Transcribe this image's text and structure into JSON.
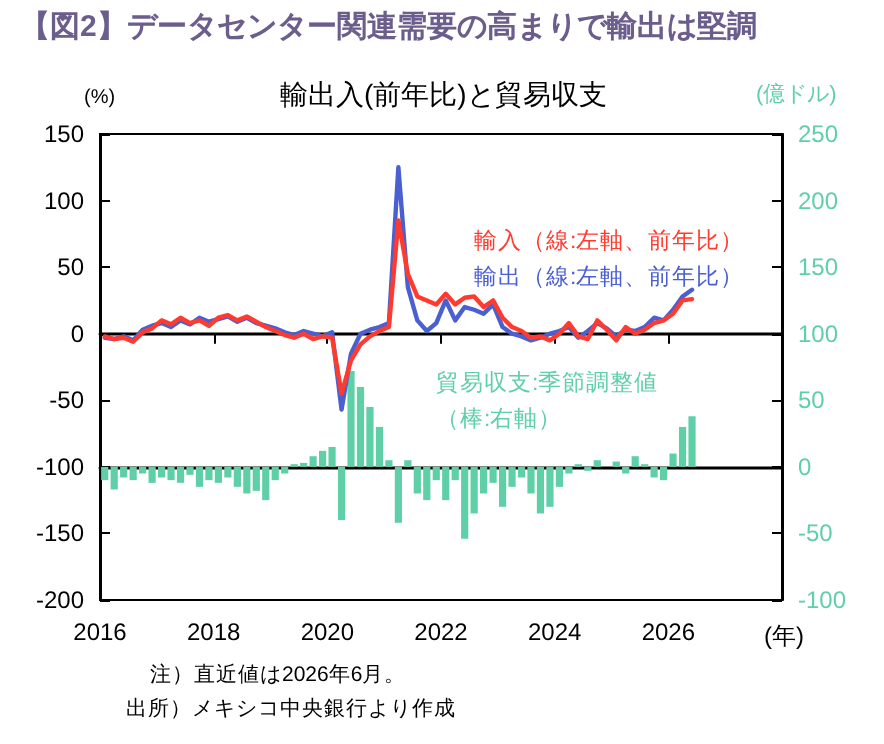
{
  "chart_data": {
    "type": "line",
    "title": "【図2】データセンター関連需要の高まりで輸出は堅調",
    "subtitle": "輸出入(前年比)と貿易収支",
    "ylabel": "(%)",
    "y2label": "(億ドル)",
    "xlabel": "(年)",
    "x": [
      "2016-02",
      "2016-04",
      "2016-06",
      "2016-08",
      "2016-10",
      "2016-12",
      "2017-02",
      "2017-04",
      "2017-06",
      "2017-08",
      "2017-10",
      "2017-12",
      "2018-02",
      "2018-04",
      "2018-06",
      "2018-08",
      "2018-10",
      "2018-12",
      "2019-02",
      "2019-04",
      "2019-06",
      "2019-08",
      "2019-10",
      "2019-12",
      "2020-02",
      "2020-04",
      "2020-06",
      "2020-08",
      "2020-10",
      "2020-12",
      "2021-02",
      "2021-04",
      "2021-06",
      "2021-08",
      "2021-10",
      "2021-12",
      "2022-02",
      "2022-04",
      "2022-06",
      "2022-08",
      "2022-10",
      "2022-12",
      "2023-02",
      "2023-04",
      "2023-06",
      "2023-08",
      "2023-10",
      "2023-12",
      "2024-02",
      "2024-04",
      "2024-06",
      "2024-08",
      "2024-10",
      "2024-12",
      "2025-02",
      "2025-04",
      "2025-06",
      "2025-08",
      "2025-10",
      "2025-12",
      "2026-02",
      "2026-04",
      "2026-06"
    ],
    "series": [
      {
        "name": "貿易収支:季節調整値（棒:右軸）",
        "type": "bar",
        "axis": "y2",
        "color": "#5fcfa8",
        "values": [
          -10,
          -17,
          -8,
          -10,
          -5,
          -12,
          -8,
          -10,
          -12,
          -6,
          -15,
          -10,
          -12,
          -8,
          -15,
          -20,
          -18,
          -25,
          -10,
          -5,
          2,
          3,
          8,
          12,
          15,
          -40,
          72,
          60,
          45,
          30,
          5,
          -42,
          5,
          -20,
          -25,
          -10,
          -25,
          -10,
          -54,
          -35,
          -20,
          -12,
          -30,
          -15,
          -8,
          -20,
          -35,
          -30,
          -15,
          -5,
          2,
          -3,
          5,
          0,
          4,
          -5,
          8,
          2,
          -8,
          -10,
          10,
          30,
          38
        ]
      },
      {
        "name": "輸出（線:左軸、前年比）",
        "color": "#4a5fd0",
        "values": [
          -3,
          -4,
          -2,
          -5,
          3,
          6,
          8,
          5,
          10,
          7,
          12,
          9,
          11,
          13,
          9,
          12,
          8,
          6,
          4,
          1,
          -1,
          2,
          0,
          -2,
          1,
          -57,
          -15,
          0,
          3,
          5,
          8,
          125,
          35,
          10,
          2,
          8,
          25,
          10,
          20,
          18,
          15,
          22,
          5,
          0,
          -2,
          -5,
          -3,
          0,
          2,
          5,
          -3,
          2,
          8,
          4,
          -2,
          3,
          2,
          5,
          12,
          10,
          18,
          28,
          33
        ]
      },
      {
        "name": "輸入（線:左軸、前年比）",
        "color": "#ff3b2f",
        "values": [
          -2,
          -4,
          -3,
          -6,
          1,
          4,
          10,
          7,
          12,
          8,
          10,
          6,
          12,
          14,
          10,
          13,
          9,
          5,
          2,
          -1,
          -3,
          0,
          -4,
          -2,
          -3,
          -45,
          -20,
          -8,
          -2,
          2,
          5,
          85,
          45,
          28,
          25,
          22,
          30,
          22,
          27,
          28,
          20,
          25,
          12,
          5,
          2,
          -3,
          -2,
          -5,
          0,
          8,
          -2,
          -4,
          10,
          3,
          -5,
          5,
          0,
          3,
          8,
          10,
          15,
          25,
          26
        ]
      }
    ],
    "xlim": [
      "2016",
      "2028"
    ],
    "xticks": [
      "2016",
      "2018",
      "2020",
      "2022",
      "2024",
      "2026"
    ],
    "ylim": [
      -200,
      150
    ],
    "yticks": [
      -200,
      -150,
      -100,
      -50,
      0,
      50,
      100,
      150
    ],
    "y2lim": [
      -100,
      250
    ],
    "y2ticks": [
      -100,
      -50,
      0,
      50,
      100,
      150,
      200,
      250
    ],
    "legend": false,
    "marker": "none",
    "line_style": "solid",
    "annotations": [
      "注）直近値は2026年6月。",
      "出所）メキシコ中央銀行より作成"
    ]
  }
}
